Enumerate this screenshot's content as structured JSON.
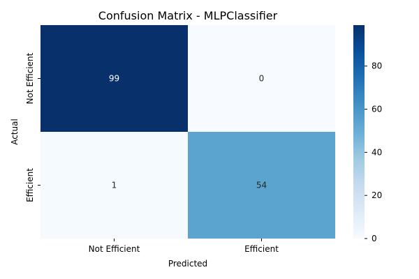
{
  "chart_data": {
    "type": "heatmap",
    "title": "Confusion Matrix - MLPClassifier",
    "xlabel": "Predicted",
    "ylabel": "Actual",
    "x_categories": [
      "Not Efficient",
      "Efficient"
    ],
    "y_categories": [
      "Not Efficient",
      "Efficient"
    ],
    "values": [
      [
        99,
        0
      ],
      [
        1,
        54
      ]
    ],
    "colormap": "Blues",
    "vmin": 0,
    "vmax": 99,
    "colorbar_ticks": [
      0,
      20,
      40,
      60,
      80
    ],
    "colorbar_tick_labels": [
      "0",
      "20",
      "40",
      "60",
      "80"
    ],
    "cell_text_colors": {
      "dark": "#ffffff",
      "light": "#262626"
    }
  }
}
